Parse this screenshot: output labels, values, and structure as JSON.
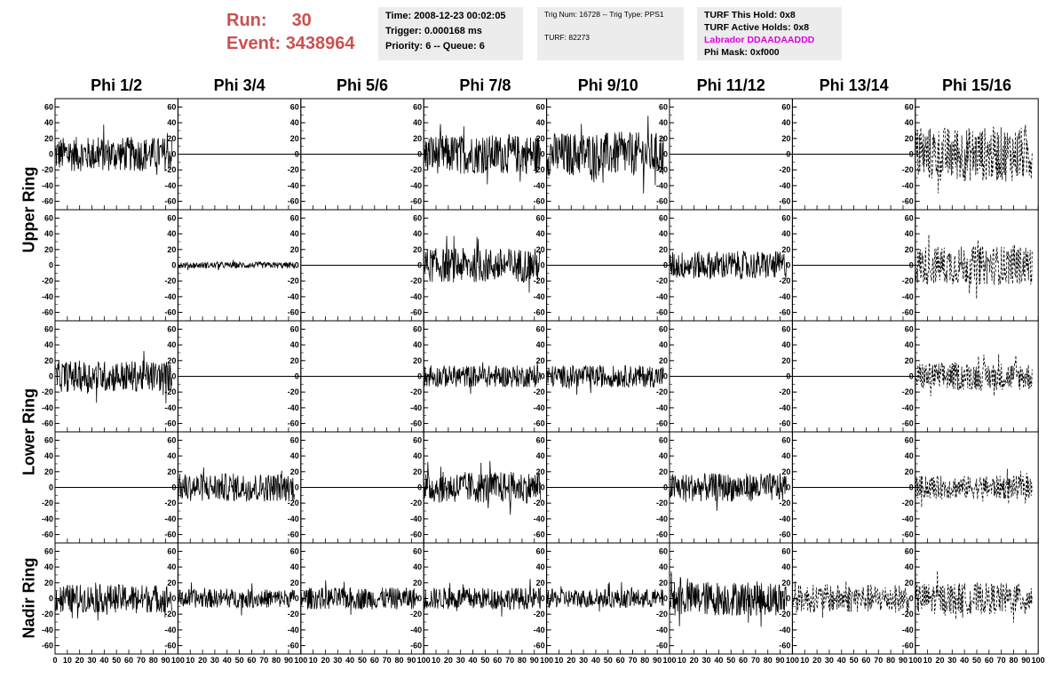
{
  "header": {
    "run_label": "Run:",
    "run_value": "30",
    "event_label": "Event:",
    "event_value": "3438964"
  },
  "info_boxes": {
    "time": "Time: 2008-12-23 00:02:05",
    "trigger": "Trigger: 0.000168 ms",
    "priority": "Priority: 6 -- Queue: 6",
    "trig_num": "Trig Num: 16728 -- Trig Type: PPS1",
    "turf": "TURF: 82273",
    "turf_this_hold": "TURF This Hold: 0x8",
    "turf_active_holds": "TURF Active Holds: 0x8",
    "labrador": "Labrador DDAADAADDD",
    "phi_mask": "Phi Mask: 0xf000"
  },
  "colors": {
    "run_text": "#cc5050",
    "labrador_text": "#e000e0",
    "box_bg": "#ececec"
  },
  "chart_data": {
    "type": "line",
    "columns": [
      "Phi 1/2",
      "Phi 3/4",
      "Phi 5/6",
      "Phi 7/8",
      "Phi 9/10",
      "Phi 11/12",
      "Phi 13/14",
      "Phi 15/16"
    ],
    "ring_labels": [
      "Upper Ring",
      "Lower Ring",
      "Nadir Ring"
    ],
    "rows": 5,
    "xlim": [
      0,
      100
    ],
    "ylim": [
      -65,
      65
    ],
    "y_ticks": [
      "60",
      "40",
      "20",
      "0",
      "-20",
      "-40",
      "-60"
    ],
    "x_tick_labels_first": [
      "0",
      "10",
      "20",
      "30",
      "40",
      "50",
      "60",
      "70",
      "80",
      "90",
      "100"
    ],
    "x_tick_labels": [
      "10",
      "20",
      "30",
      "40",
      "50",
      "60",
      "70",
      "80",
      "90",
      "100"
    ],
    "x_tick_labels_last": [
      "10",
      "20",
      "30",
      "40",
      "50",
      "60",
      "70",
      "80",
      "90",
      "100"
    ],
    "panels": [
      [
        {
          "amp": 22,
          "style": "solid",
          "active": true
        },
        {
          "amp": 0,
          "style": "flat",
          "active": false
        },
        {
          "amp": 0,
          "style": "flat",
          "active": false
        },
        {
          "amp": 25,
          "style": "solid",
          "active": true
        },
        {
          "amp": 28,
          "style": "solid",
          "active": true
        },
        {
          "amp": 0,
          "style": "flat",
          "active": false
        },
        {
          "amp": 0,
          "style": "flat",
          "active": false
        },
        {
          "amp": 35,
          "style": "dashed",
          "active": true
        }
      ],
      [
        {
          "amp": 0,
          "style": "none",
          "active": false
        },
        {
          "amp": 4,
          "style": "solid",
          "active": true
        },
        {
          "amp": 0,
          "style": "flat",
          "active": false
        },
        {
          "amp": 22,
          "style": "solid",
          "active": true
        },
        {
          "amp": 0,
          "style": "flat",
          "active": false
        },
        {
          "amp": 18,
          "style": "solid",
          "active": true
        },
        {
          "amp": 0,
          "style": "flat",
          "active": false
        },
        {
          "amp": 25,
          "style": "dashed",
          "active": true
        }
      ],
      [
        {
          "amp": 20,
          "style": "solid",
          "active": true
        },
        {
          "amp": 0,
          "style": "flat",
          "active": false
        },
        {
          "amp": 0,
          "style": "flat",
          "active": false
        },
        {
          "amp": 14,
          "style": "solid",
          "active": true
        },
        {
          "amp": 14,
          "style": "solid",
          "active": true
        },
        {
          "amp": 0,
          "style": "flat",
          "active": false
        },
        {
          "amp": 0,
          "style": "flat",
          "active": false
        },
        {
          "amp": 18,
          "style": "dashed",
          "active": true
        }
      ],
      [
        {
          "amp": 0,
          "style": "flat",
          "active": false
        },
        {
          "amp": 18,
          "style": "solid",
          "active": true
        },
        {
          "amp": 0,
          "style": "flat",
          "active": false
        },
        {
          "amp": 20,
          "style": "solid",
          "active": true
        },
        {
          "amp": 0,
          "style": "flat",
          "active": false
        },
        {
          "amp": 18,
          "style": "solid",
          "active": true
        },
        {
          "amp": 0,
          "style": "flat",
          "active": false
        },
        {
          "amp": 15,
          "style": "dashed",
          "active": true
        }
      ],
      [
        {
          "amp": 18,
          "style": "solid",
          "active": true
        },
        {
          "amp": 12,
          "style": "solid",
          "active": true
        },
        {
          "amp": 14,
          "style": "solid",
          "active": true
        },
        {
          "amp": 14,
          "style": "solid",
          "active": true
        },
        {
          "amp": 12,
          "style": "solid",
          "active": true
        },
        {
          "amp": 22,
          "style": "solid",
          "active": true
        },
        {
          "amp": 18,
          "style": "dashed",
          "active": true
        },
        {
          "amp": 20,
          "style": "dashed",
          "active": true
        }
      ]
    ]
  }
}
